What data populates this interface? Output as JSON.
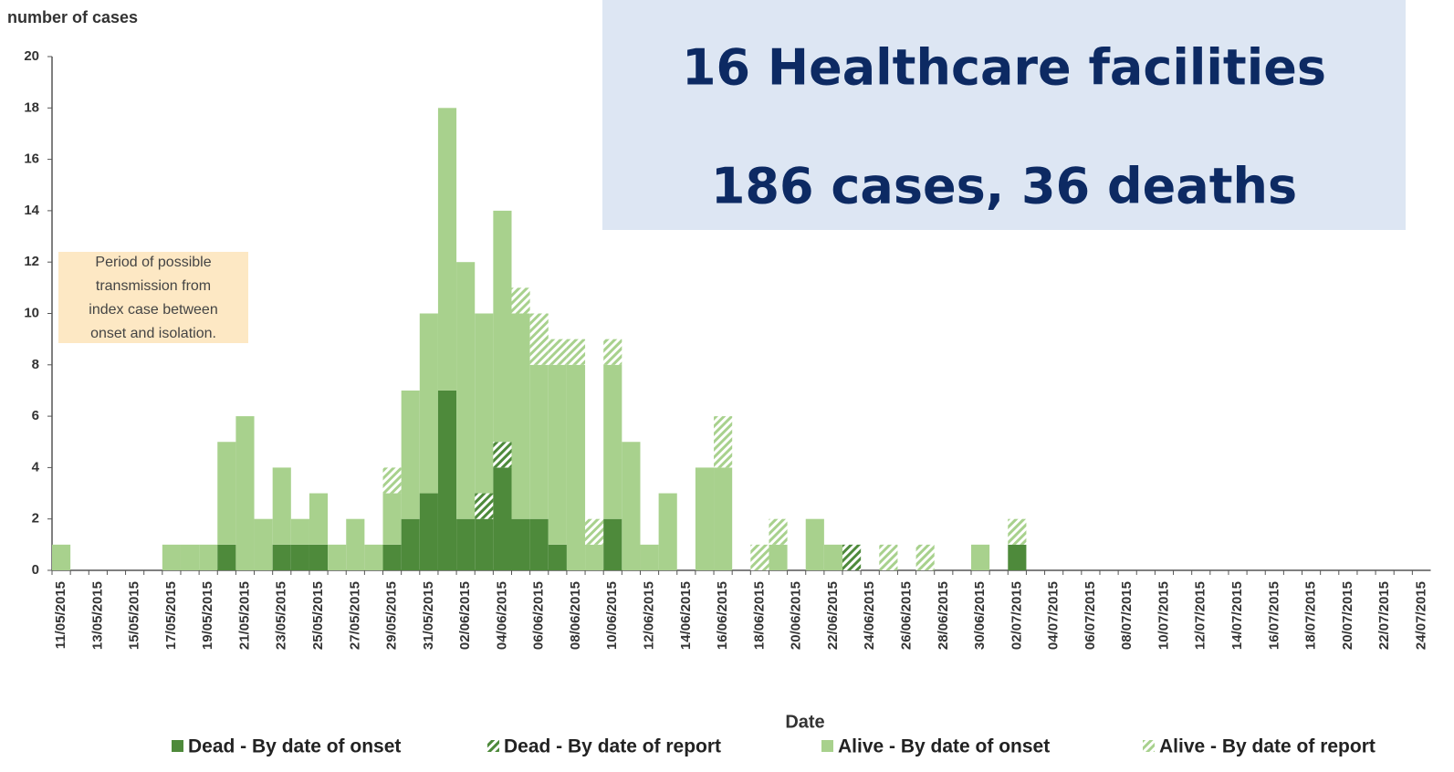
{
  "header": {
    "lines": [
      "16 Healthcare facilities",
      "186 cases, 36 deaths"
    ]
  },
  "chart_data": {
    "type": "bar",
    "stacked": true,
    "y_label": "number of cases",
    "x_label": "Date",
    "annotation": [
      "Period of possible",
      "transmission from",
      "index case between",
      "onset and isolation."
    ],
    "categories": [
      "11/05/2015",
      null,
      "13/05/2015",
      null,
      "15/05/2015",
      null,
      "17/05/2015",
      null,
      "19/05/2015",
      null,
      "21/05/2015",
      null,
      "23/05/2015",
      null,
      "25/05/2015",
      null,
      "27/05/2015",
      null,
      "29/05/2015",
      null,
      "31/05/2015",
      null,
      "02/06/2015",
      null,
      "04/06/2015",
      null,
      "06/06/2015",
      null,
      "08/06/2015",
      null,
      "10/06/2015",
      null,
      "12/06/2015",
      null,
      "14/06/2015",
      null,
      "16/06/2015",
      null,
      "18/06/2015",
      null,
      "20/06/2015",
      null,
      "22/06/2015",
      null,
      "24/06/2015",
      null,
      "26/06/2015",
      null,
      "28/06/2015",
      null,
      "30/06/2015",
      null,
      "02/07/2015",
      null,
      "04/07/2015",
      null,
      "06/07/2015",
      null,
      "08/07/2015",
      null,
      "10/07/2015",
      null,
      "12/07/2015",
      null,
      "14/07/2015",
      null,
      "16/07/2015",
      null,
      "18/07/2015",
      null,
      "20/07/2015",
      null,
      "22/07/2015",
      null,
      "24/07/2015"
    ],
    "series": [
      {
        "name": "Dead - By date of onset",
        "color": "#4e8a3b",
        "hatched": false,
        "values": [
          0,
          0,
          0,
          0,
          0,
          0,
          0,
          0,
          0,
          1,
          0,
          0,
          1,
          1,
          1,
          0,
          0,
          0,
          1,
          2,
          3,
          7,
          2,
          2,
          4,
          2,
          2,
          1,
          0,
          0,
          2,
          0,
          0,
          0,
          0,
          0,
          0,
          0,
          0,
          0,
          0,
          0,
          0,
          0,
          0,
          0,
          0,
          0,
          0,
          0,
          0,
          0,
          1,
          0,
          0,
          0,
          0,
          0,
          0,
          0,
          0,
          0,
          0,
          0,
          0,
          0,
          0,
          0,
          0,
          0,
          0,
          0,
          0,
          0,
          0
        ]
      },
      {
        "name": "Dead - By date of report",
        "color": "#4e8a3b",
        "hatched": true,
        "values": [
          0,
          0,
          0,
          0,
          0,
          0,
          0,
          0,
          0,
          0,
          0,
          0,
          0,
          0,
          0,
          0,
          0,
          0,
          0,
          0,
          0,
          0,
          0,
          1,
          1,
          0,
          0,
          0,
          0,
          0,
          0,
          0,
          0,
          0,
          0,
          0,
          0,
          0,
          0,
          0,
          0,
          0,
          0,
          1,
          0,
          0,
          0,
          0,
          0,
          0,
          0,
          0,
          0,
          0,
          0,
          0,
          0,
          0,
          0,
          0,
          0,
          0,
          0,
          0,
          0,
          0,
          0,
          0,
          0,
          0,
          0,
          0,
          0,
          0,
          0
        ]
      },
      {
        "name": "Alive - By date of onset",
        "color": "#a8d18d",
        "hatched": false,
        "values": [
          1,
          0,
          0,
          0,
          0,
          0,
          1,
          1,
          1,
          4,
          6,
          2,
          3,
          1,
          2,
          1,
          2,
          1,
          2,
          5,
          7,
          11,
          10,
          7,
          9,
          8,
          6,
          7,
          8,
          1,
          6,
          5,
          1,
          3,
          0,
          4,
          4,
          0,
          0,
          1,
          0,
          2,
          1,
          0,
          0,
          0,
          0,
          0,
          0,
          0,
          1,
          0,
          0,
          0,
          0,
          0,
          0,
          0,
          0,
          0,
          0,
          0,
          0,
          0,
          0,
          0,
          0,
          0,
          0,
          0,
          0,
          0,
          0,
          0,
          0
        ]
      },
      {
        "name": "Alive - By date of report",
        "color": "#a8d18d",
        "hatched": true,
        "values": [
          0,
          0,
          0,
          0,
          0,
          0,
          0,
          0,
          0,
          0,
          0,
          0,
          0,
          0,
          0,
          0,
          0,
          0,
          1,
          0,
          0,
          0,
          0,
          0,
          0,
          1,
          2,
          1,
          1,
          1,
          1,
          0,
          0,
          0,
          0,
          0,
          2,
          0,
          1,
          1,
          0,
          0,
          0,
          0,
          0,
          1,
          0,
          1,
          0,
          0,
          0,
          0,
          1,
          0,
          0,
          0,
          0,
          0,
          0,
          0,
          0,
          0,
          0,
          0,
          0,
          0,
          0,
          0,
          0,
          0,
          0,
          0,
          0,
          0,
          0
        ]
      }
    ],
    "ylim": [
      0,
      20
    ],
    "yticks": [
      0,
      2,
      4,
      6,
      8,
      10,
      12,
      14,
      16,
      18,
      20
    ],
    "grid": false
  }
}
